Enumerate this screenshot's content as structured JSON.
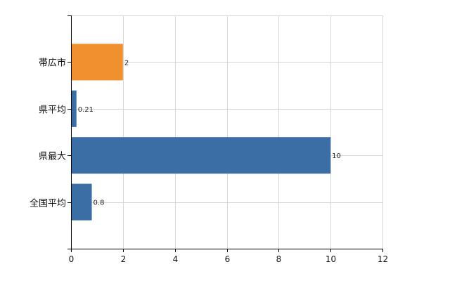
{
  "chart_data": {
    "type": "bar",
    "orientation": "horizontal",
    "categories": [
      "帯広市",
      "県平均",
      "県最大",
      "全国平均"
    ],
    "values": [
      2,
      0.21,
      10,
      0.8
    ],
    "value_labels": [
      "2",
      "0.21",
      "10",
      "0.8"
    ],
    "bar_colors": [
      "#f0902f",
      "#3a6ea5",
      "#3a6ea5",
      "#3a6ea5"
    ],
    "xlim": [
      0,
      12
    ],
    "xticks": [
      0,
      2,
      4,
      6,
      8,
      10,
      12
    ],
    "xtick_labels": [
      "0",
      "2",
      "4",
      "6",
      "8",
      "10",
      "12"
    ],
    "grid": true,
    "legend": "none",
    "title": "",
    "xlabel": "",
    "ylabel": ""
  }
}
